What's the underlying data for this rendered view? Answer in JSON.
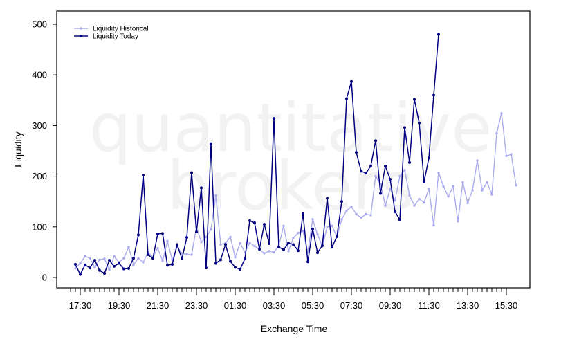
{
  "chart_data": {
    "type": "line",
    "xlabel": "Exchange Time",
    "ylabel": "Liquidity",
    "watermark": [
      "quantitative",
      "brokers"
    ],
    "ylim": [
      -20,
      525
    ],
    "y_ticks": [
      0,
      100,
      200,
      300,
      400,
      500
    ],
    "x_ticks": [
      "17:30",
      "19:30",
      "21:30",
      "23:30",
      "01:30",
      "03:30",
      "05:30",
      "07:30",
      "09:30",
      "11:30",
      "13:30",
      "15:30"
    ],
    "legend": {
      "placement": "top-left"
    },
    "series": [
      {
        "name": "Liquidity Historical",
        "color": "#aaaaee",
        "values": [
          18,
          28,
          42,
          38,
          20,
          35,
          37,
          15,
          42,
          30,
          38,
          60,
          25,
          38,
          30,
          50,
          40,
          58,
          33,
          72,
          35,
          60,
          48,
          46,
          45,
          100,
          70,
          80,
          95,
          162,
          65,
          68,
          80,
          40,
          68,
          50,
          68,
          62,
          55,
          48,
          52,
          50,
          63,
          102,
          52,
          78,
          88,
          92,
          50,
          115,
          85,
          62,
          100,
          102,
          80,
          115,
          132,
          140,
          125,
          118,
          125,
          123,
          200,
          185,
          142,
          175,
          152,
          200,
          212,
          162,
          142,
          155,
          148,
          175,
          103,
          207,
          180,
          160,
          180,
          111,
          188,
          147,
          172,
          231,
          172,
          188,
          164,
          285,
          324,
          240,
          243,
          182
        ]
      },
      {
        "name": "Liquidity Today",
        "color": "#00007f",
        "values": [
          26,
          6,
          25,
          19,
          34,
          14,
          8,
          34,
          22,
          28,
          17,
          18,
          38,
          84,
          202,
          45,
          38,
          86,
          87,
          24,
          26,
          65,
          37,
          79,
          207,
          90,
          177,
          19,
          264,
          28,
          35,
          65,
          32,
          20,
          16,
          37,
          112,
          108,
          56,
          105,
          67,
          314,
          60,
          55,
          68,
          65,
          53,
          126,
          31,
          96,
          49,
          63,
          156,
          60,
          81,
          150,
          353,
          387,
          247,
          210,
          206,
          220,
          270,
          166,
          220,
          194,
          130,
          114,
          296,
          227,
          352,
          305,
          189,
          236,
          360,
          480
        ]
      }
    ]
  }
}
